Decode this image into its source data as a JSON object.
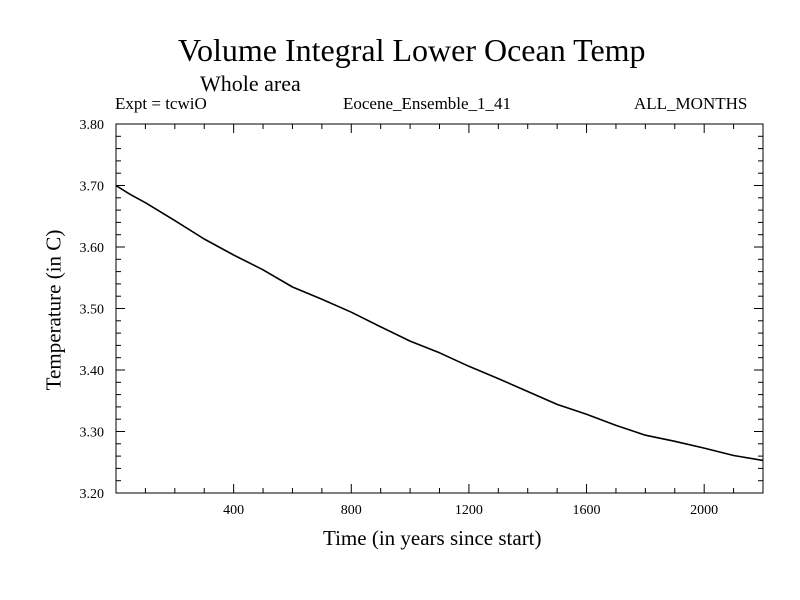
{
  "chart_data": {
    "type": "line",
    "title": "Volume Integral Lower Ocean Temp",
    "subtitle": "Whole area",
    "annotations": {
      "left": "Expt = tcwiO",
      "center": "Eocene_Ensemble_1_41",
      "right": "ALL_MONTHS"
    },
    "xlabel": "Time (in years since start)",
    "ylabel": "Temperature (in C)",
    "xlim": [
      0,
      2200
    ],
    "ylim": [
      3.2,
      3.8
    ],
    "x_ticks": [
      400,
      800,
      1200,
      1600,
      2000
    ],
    "x_tick_labels": [
      "400",
      "800",
      "1200",
      "1600",
      "2000"
    ],
    "y_ticks": [
      3.2,
      3.3,
      3.4,
      3.5,
      3.6,
      3.7,
      3.8
    ],
    "y_tick_labels": [
      "3.20",
      "3.30",
      "3.40",
      "3.50",
      "3.60",
      "3.70",
      "3.80"
    ],
    "grid": false,
    "series": [
      {
        "color": "#000000",
        "x": [
          0,
          50,
          100,
          200,
          300,
          400,
          500,
          600,
          700,
          800,
          900,
          1000,
          1100,
          1200,
          1300,
          1400,
          1500,
          1600,
          1700,
          1800,
          1900,
          2000,
          2100,
          2200
        ],
        "y": [
          3.7,
          3.685,
          3.672,
          3.643,
          3.613,
          3.587,
          3.563,
          3.535,
          3.515,
          3.494,
          3.47,
          3.447,
          3.428,
          3.406,
          3.386,
          3.365,
          3.344,
          3.328,
          3.31,
          3.294,
          3.284,
          3.273,
          3.261,
          3.253
        ]
      }
    ]
  }
}
